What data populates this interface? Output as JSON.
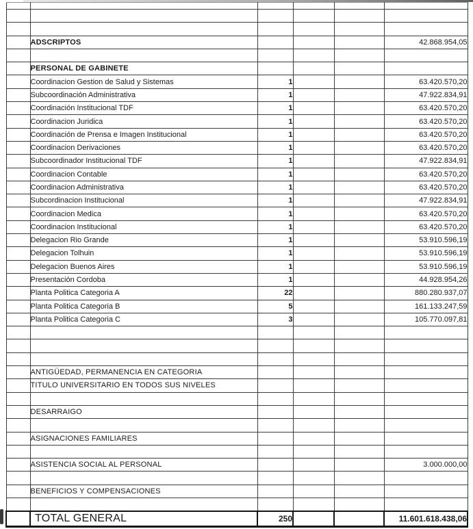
{
  "document": {
    "kind_label": "scanned personnel budget table",
    "text_color": "#1b1b1b",
    "grid_line_color": "#3b3b3b",
    "background_color": "#ffffff"
  },
  "table": {
    "rows": [
      {
        "style": "spacer",
        "label": "",
        "qty": "",
        "amount": ""
      },
      {
        "style": "empty",
        "label": "",
        "qty": "",
        "amount": ""
      },
      {
        "style": "empty",
        "label": "",
        "qty": "",
        "amount": ""
      },
      {
        "style": "header",
        "label": "ADSCRIPTOS",
        "qty": "",
        "amount": "42.868.954,05"
      },
      {
        "style": "empty",
        "label": "",
        "qty": "",
        "amount": ""
      },
      {
        "style": "header",
        "label": "PERSONAL DE GABINETE",
        "qty": "",
        "amount": ""
      },
      {
        "style": "data",
        "label": "Coordinacion Gestion de Salud y Sistemas",
        "qty": "1",
        "amount": "63.420.570,20"
      },
      {
        "style": "data",
        "label": "Subcoordinación Administrativa",
        "qty": "1",
        "amount": "47.922.834,91"
      },
      {
        "style": "data",
        "label": "Coordinación Institucional TDF",
        "qty": "1",
        "amount": "63.420.570,20"
      },
      {
        "style": "data",
        "label": "Coordinacion Juridica",
        "qty": "1",
        "amount": "63.420.570,20"
      },
      {
        "style": "data",
        "label": "Coordinación de Prensa e Imagen Institucional",
        "qty": "1",
        "amount": "63.420.570,20"
      },
      {
        "style": "data",
        "label": "Coordinacion Derivaciones",
        "qty": "1",
        "amount": "63.420.570,20"
      },
      {
        "style": "data",
        "label": "Subcoordinador Institucional TDF",
        "qty": "1",
        "amount": "47.922.834,91"
      },
      {
        "style": "data",
        "label": "Coordinacion Contable",
        "qty": "1",
        "amount": "63.420.570,20"
      },
      {
        "style": "data",
        "label": "Coordinacion Administrativa",
        "qty": "1",
        "amount": "63.420.570,20"
      },
      {
        "style": "data",
        "label": "Subcordinacion Institucional",
        "qty": "1",
        "amount": "47.922.834,91"
      },
      {
        "style": "data",
        "label": "Coordinacion Medica",
        "qty": "1",
        "amount": "63.420.570,20"
      },
      {
        "style": "data",
        "label": "Coordinacion Institucional",
        "qty": "1",
        "amount": "63.420.570,20"
      },
      {
        "style": "data",
        "label": "Delegacion Rio Grande",
        "qty": "1",
        "amount": "53.910.596,19"
      },
      {
        "style": "data",
        "label": "Delegacion Tolhuin",
        "qty": "1",
        "amount": "53.910.596,19"
      },
      {
        "style": "data",
        "label": "Delegacion Buenos Aires",
        "qty": "1",
        "amount": "53.910.596,19"
      },
      {
        "style": "data",
        "label": "Presentación Cordoba",
        "qty": "1",
        "amount": "44.928.954,26"
      },
      {
        "style": "data",
        "label": "Planta Politica Categoria A",
        "qty": "22",
        "amount": "880.280.937,07"
      },
      {
        "style": "data",
        "label": "Planta Politica Categoria B",
        "qty": "5",
        "amount": "161.133.247,59"
      },
      {
        "style": "data",
        "label": "Planta Politica Categoria C",
        "qty": "3",
        "amount": "105.770.097,81"
      },
      {
        "style": "empty",
        "label": "",
        "qty": "",
        "amount": ""
      },
      {
        "style": "empty",
        "label": "",
        "qty": "",
        "amount": ""
      },
      {
        "style": "empty",
        "label": "",
        "qty": "",
        "amount": ""
      },
      {
        "style": "section",
        "label": "ANTIGÜEDAD, PERMANENCIA EN CATEGORIA",
        "qty": "",
        "amount": ""
      },
      {
        "style": "section",
        "label": "TITULO UNIVERSITARIO EN TODOS SUS NIVELES",
        "qty": "",
        "amount": ""
      },
      {
        "style": "empty",
        "label": "",
        "qty": "",
        "amount": ""
      },
      {
        "style": "section",
        "label": "DESARRAIGO",
        "qty": "",
        "amount": ""
      },
      {
        "style": "empty",
        "label": "",
        "qty": "",
        "amount": ""
      },
      {
        "style": "section",
        "label": "ASIGNACIONES FAMILIARES",
        "qty": "",
        "amount": ""
      },
      {
        "style": "empty",
        "label": "",
        "qty": "",
        "amount": ""
      },
      {
        "style": "section",
        "label": "ASISTENCIA SOCIAL AL PERSONAL",
        "qty": "",
        "amount": "3.000.000,00"
      },
      {
        "style": "empty",
        "label": "",
        "qty": "",
        "amount": ""
      },
      {
        "style": "section",
        "label": "BENEFICIOS Y COMPENSACIONES",
        "qty": "",
        "amount": ""
      },
      {
        "style": "empty",
        "label": "",
        "qty": "",
        "amount": ""
      },
      {
        "style": "total",
        "label": "TOTAL GENERAL",
        "qty": "250",
        "amount": "11.601.618.438,06"
      }
    ]
  }
}
